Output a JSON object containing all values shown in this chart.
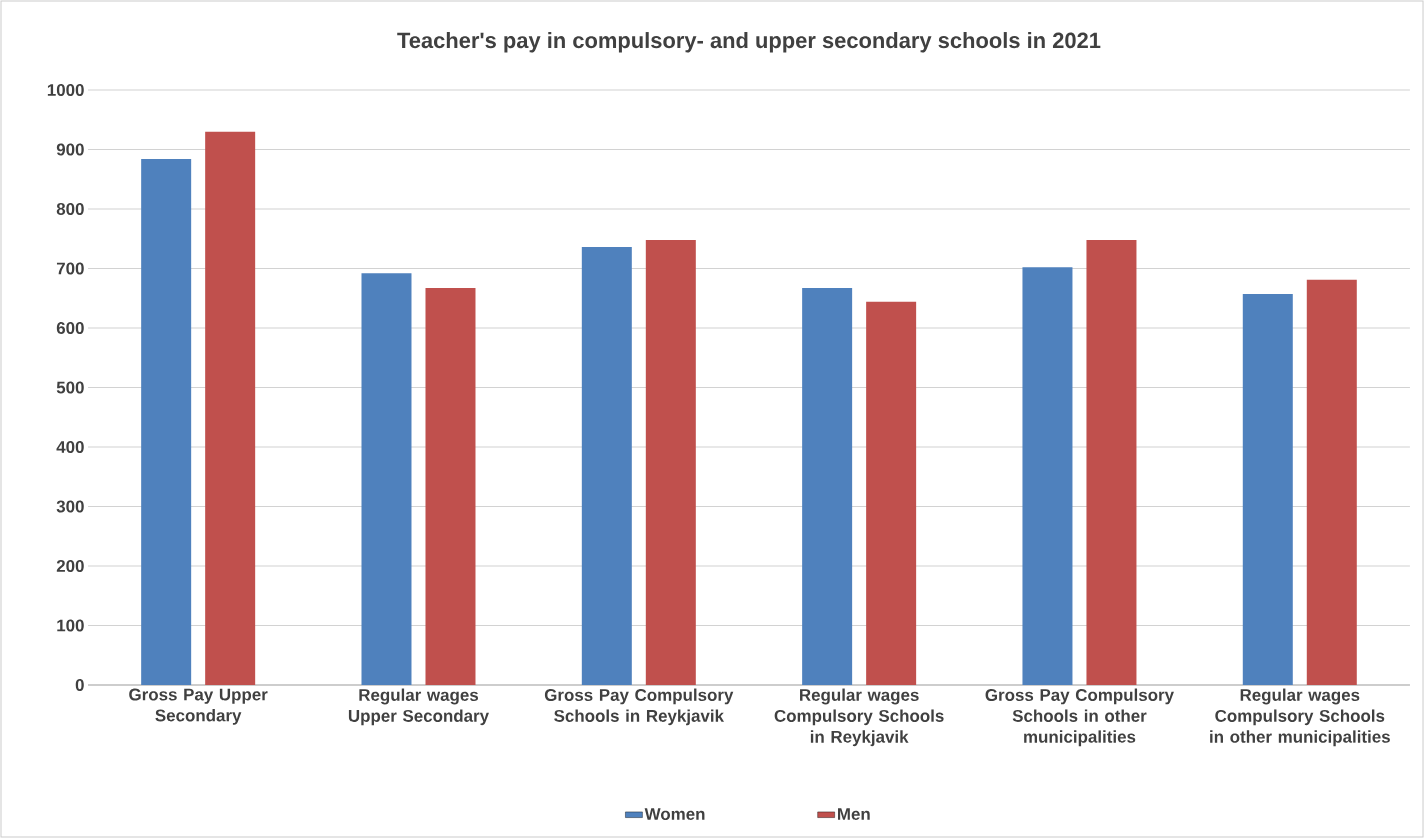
{
  "chart_data": {
    "type": "bar",
    "title": "Teacher's pay in compulsory- and upper secondary schools in 2021",
    "categories": [
      "Gross Pay Upper Secondary",
      "Regular wages Upper Secondary",
      "Gross Pay Compulsory Schools in Reykjavik",
      "Regular wages Compulsory Schools in Reykjavik",
      "Gross Pay Compulsory Schools in other municipalities",
      "Regular wages Compulsory Schools in other municipalities"
    ],
    "series": [
      {
        "name": "Women",
        "color": "#4f81bd",
        "values": [
          884,
          692,
          736,
          667,
          702,
          657
        ]
      },
      {
        "name": "Men",
        "color": "#c0504d",
        "values": [
          930,
          667,
          748,
          644,
          748,
          681
        ]
      }
    ],
    "ylim": [
      0,
      1000
    ],
    "yticks": [
      0,
      100,
      200,
      300,
      400,
      500,
      600,
      700,
      800,
      900,
      1000
    ],
    "grid": "y",
    "legend": "bottom"
  }
}
